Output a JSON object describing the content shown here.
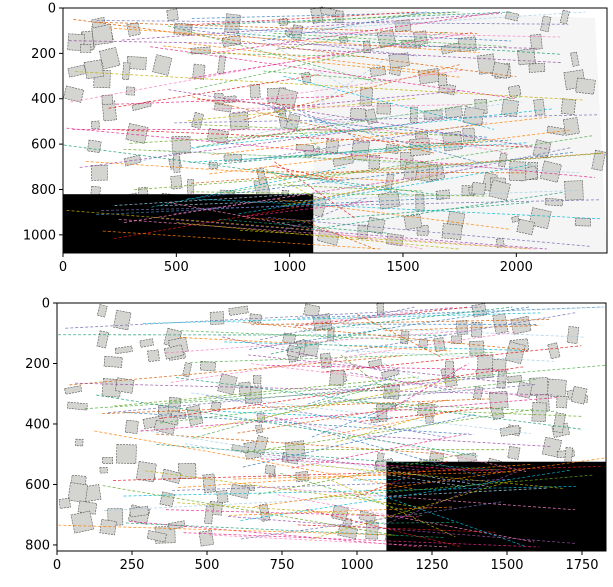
{
  "chart_data": [
    {
      "type": "image",
      "xlim": [
        0,
        2400
      ],
      "ylim": [
        1080,
        0
      ],
      "xticks": [
        0,
        500,
        1000,
        1500,
        2000
      ],
      "yticks": [
        0,
        200,
        400,
        600,
        800,
        1000
      ]
    },
    {
      "type": "image",
      "xlim": [
        0,
        1830
      ],
      "ylim": [
        820,
        0
      ],
      "xticks": [
        0,
        250,
        500,
        750,
        1000,
        1250,
        1500,
        1750
      ],
      "yticks": [
        0,
        200,
        400,
        600,
        800
      ]
    }
  ]
}
